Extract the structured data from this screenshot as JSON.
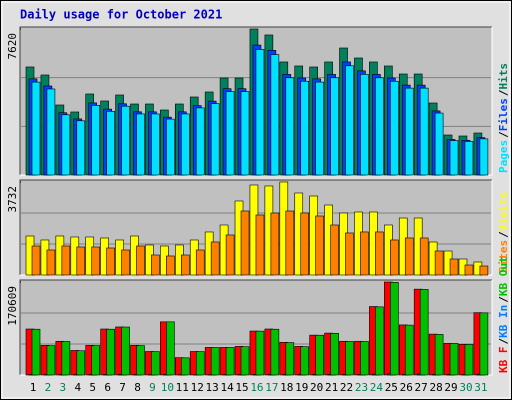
{
  "chart_data": [
    {
      "type": "bar",
      "title": "Daily usage for October 2021",
      "ylim": [
        0,
        7620
      ],
      "yticks": [
        7620
      ],
      "grid": true,
      "legend_reversed": true,
      "legend_separator": "/",
      "series": [
        {
          "name": "Hits",
          "color": "#00805c",
          "values": [
            5638,
            5220,
            3654,
            3289,
            4228,
            3863,
            4176,
            3706,
            3706,
            3393,
            3706,
            4072,
            4333,
            5063,
            5063,
            7620,
            7308,
            5899,
            5690,
            5638,
            5899,
            6629,
            6107,
            5899,
            5690,
            5272,
            5272,
            3758,
            2088,
            2036,
            2192
          ]
        },
        {
          "name": "Files",
          "color": "#0040ff",
          "values": [
            5018,
            4646,
            3252,
            2927,
            3763,
            3438,
            3717,
            3298,
            3298,
            3020,
            3298,
            3624,
            3856,
            4506,
            4506,
            6782,
            6504,
            5250,
            5064,
            5018,
            5250,
            5900,
            5435,
            5250,
            5064,
            4692,
            4692,
            3345,
            1858,
            1812,
            1951
          ]
        },
        {
          "name": "Pages",
          "color": "#00e0ff",
          "values": [
            4849,
            4489,
            3142,
            2829,
            3636,
            3322,
            3591,
            3187,
            3187,
            2918,
            3187,
            3502,
            3726,
            4354,
            4354,
            6553,
            6285,
            5073,
            4893,
            4849,
            5073,
            5701,
            5252,
            5073,
            4893,
            4534,
            4534,
            3232,
            1796,
            1751,
            1885
          ]
        }
      ]
    },
    {
      "type": "bar",
      "ylim": [
        0,
        3732
      ],
      "yticks": [
        3732
      ],
      "grid": true,
      "legend_reversed": true,
      "legend_separator": "/",
      "series": [
        {
          "name": "Visits",
          "color": "#ffff00",
          "values": [
            1565,
            1405,
            1565,
            1525,
            1525,
            1485,
            1405,
            1565,
            1204,
            1164,
            1204,
            1405,
            1726,
            2007,
            2970,
            3612,
            3572,
            3732,
            3291,
            3170,
            2809,
            2488,
            2528,
            2528,
            2007,
            2287,
            2287,
            1324,
            963,
            642,
            522
          ]
        },
        {
          "name": "Sites",
          "color": "#ff8000",
          "values": [
            1164,
            1004,
            1164,
            1124,
            1124,
            1084,
            1004,
            1164,
            803,
            763,
            803,
            1004,
            1325,
            1606,
            2569,
            2408,
            2488,
            2568,
            2489,
            2368,
            2007,
            1686,
            1727,
            1727,
            1405,
            1486,
            1486,
            963,
            642,
            401,
            361
          ]
        }
      ]
    },
    {
      "type": "bar",
      "ylim": [
        0,
        170609
      ],
      "yticks": [
        170609
      ],
      "grid": true,
      "legend_reversed": false,
      "legend_separator": "/",
      "categories": [
        "1",
        "2",
        "3",
        "4",
        "5",
        "6",
        "7",
        "8",
        "9",
        "10",
        "11",
        "12",
        "13",
        "14",
        "15",
        "16",
        "17",
        "18",
        "19",
        "20",
        "21",
        "22",
        "23",
        "24",
        "25",
        "26",
        "27",
        "28",
        "29",
        "30",
        "31"
      ],
      "category_colors": [
        "#000000",
        "#00805c",
        "#00805c",
        "#000000",
        "#000000",
        "#000000",
        "#000000",
        "#000000",
        "#00805c",
        "#00805c",
        "#000000",
        "#000000",
        "#000000",
        "#000000",
        "#000000",
        "#00805c",
        "#00805c",
        "#000000",
        "#000000",
        "#000000",
        "#000000",
        "#000000",
        "#00805c",
        "#00805c",
        "#000000",
        "#000000",
        "#000000",
        "#000000",
        "#000000",
        "#00805c",
        "#00805c"
      ],
      "series": [
        {
          "name": "KB F",
          "color": "#ff0000",
          "values": [
            84375,
            54375,
            61875,
            45000,
            54375,
            84375,
            88125,
            54375,
            43125,
            97500,
            31875,
            43125,
            50625,
            50625,
            52500,
            80625,
            84375,
            60000,
            52500,
            73125,
            76875,
            61875,
            61875,
            125625,
            170609,
            91875,
            157500,
            75000,
            58125,
            56250,
            114375
          ]
        },
        {
          "name": "KB In",
          "color": "#0080ff",
          "values": [
            1200,
            900,
            1000,
            800,
            900,
            1200,
            1300,
            900,
            700,
            1400,
            600,
            700,
            800,
            800,
            900,
            1200,
            1200,
            1000,
            900,
            1100,
            1100,
            1000,
            1000,
            1600,
            2100,
            1300,
            1900,
            1100,
            900,
            900,
            1500
          ]
        },
        {
          "name": "KB Out",
          "color": "#00c000",
          "values": [
            84000,
            54000,
            61500,
            44500,
            54000,
            84000,
            88000,
            54000,
            43000,
            97500,
            31500,
            43000,
            50500,
            50500,
            52000,
            80500,
            84000,
            59500,
            52000,
            73000,
            76500,
            61500,
            61500,
            125000,
            170000,
            91500,
            157000,
            74500,
            58000,
            56000,
            114000
          ]
        }
      ]
    }
  ]
}
